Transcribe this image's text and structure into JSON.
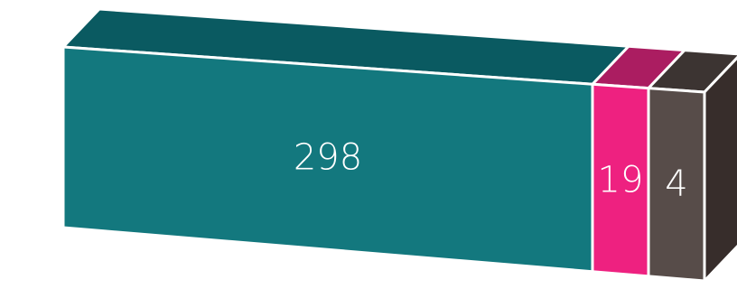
{
  "chart_data": {
    "type": "bar",
    "style": "3d-stacked-horizontal",
    "categories": [
      "",
      "",
      ""
    ],
    "values": [
      298,
      19,
      4
    ],
    "data_labels": [
      "298",
      "19",
      "4"
    ],
    "colors": {
      "front": [
        "#13787e",
        "#ee2180",
        "#574c49"
      ],
      "top": [
        "#0a5a61",
        "#ab1d61",
        "#3c3432"
      ],
      "side": [
        "#0a5a61",
        "#ab1d61",
        "#372d2b"
      ],
      "edge": "#ffffff"
    },
    "title": "",
    "legend": "none",
    "grid": false
  }
}
